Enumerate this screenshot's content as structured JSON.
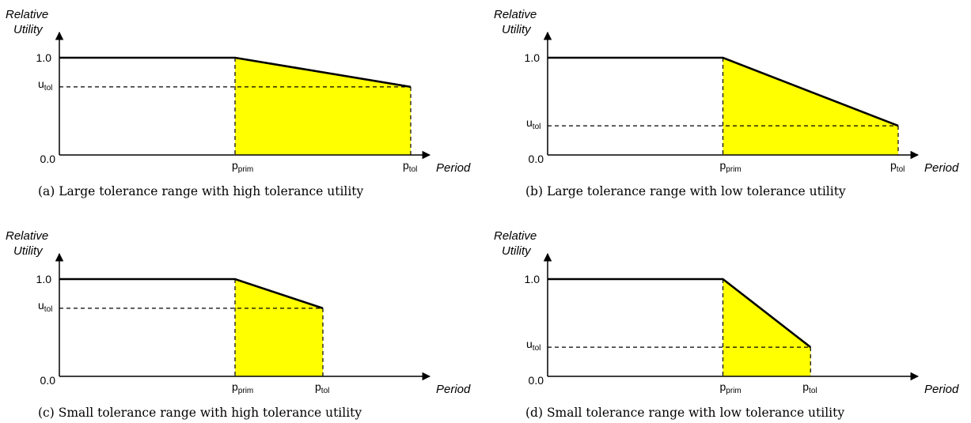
{
  "panels": [
    {
      "id": "a",
      "caption": "(a) Large tolerance range with high tolerance utility",
      "y_title_line1": "Relative",
      "y_title_line2": "Utility",
      "x_title": "Period",
      "y_tick_top": "1.0",
      "y_tick_bottom": "0.0",
      "u_label": "u",
      "u_sub": "tol",
      "p1_label": "p",
      "p1_sub": "prim",
      "p2_label": "p",
      "p2_sub": "tol",
      "u_tol_value": 0.7,
      "p_prim_value": 0.5,
      "p_tol_value": 1.0
    },
    {
      "id": "b",
      "caption": "(b) Large tolerance range with low tolerance utility",
      "y_title_line1": "Relative",
      "y_title_line2": "Utility",
      "x_title": "Period",
      "y_tick_top": "1.0",
      "y_tick_bottom": "0.0",
      "u_label": "u",
      "u_sub": "tol",
      "p1_label": "p",
      "p1_sub": "prim",
      "p2_label": "p",
      "p2_sub": "tol",
      "u_tol_value": 0.3,
      "p_prim_value": 0.5,
      "p_tol_value": 1.0
    },
    {
      "id": "c",
      "caption": "(c) Small tolerance range with high tolerance utility",
      "y_title_line1": "Relative",
      "y_title_line2": "Utility",
      "x_title": "Period",
      "y_tick_top": "1.0",
      "y_tick_bottom": "0.0",
      "u_label": "u",
      "u_sub": "tol",
      "p1_label": "p",
      "p1_sub": "prim",
      "p2_label": "p",
      "p2_sub": "tol",
      "u_tol_value": 0.7,
      "p_prim_value": 0.5,
      "p_tol_value": 0.75
    },
    {
      "id": "d",
      "caption": "(d) Small tolerance range with low tolerance utility",
      "y_title_line1": "Relative",
      "y_title_line2": "Utility",
      "x_title": "Period",
      "y_tick_top": "1.0",
      "y_tick_bottom": "0.0",
      "u_label": "u",
      "u_sub": "tol",
      "p1_label": "p",
      "p1_sub": "prim",
      "p2_label": "p",
      "p2_sub": "tol",
      "u_tol_value": 0.3,
      "p_prim_value": 0.5,
      "p_tol_value": 0.75
    }
  ],
  "colors": {
    "fill": "#ffff00",
    "line": "#000000"
  }
}
